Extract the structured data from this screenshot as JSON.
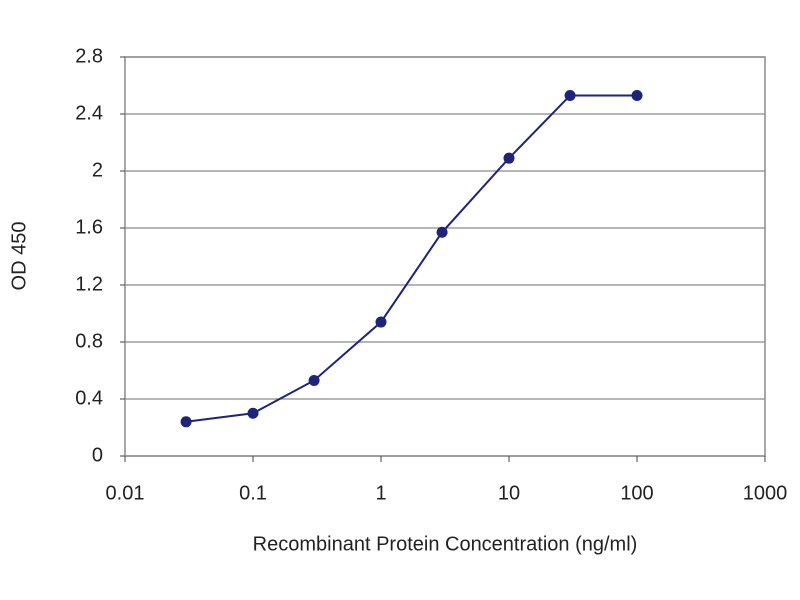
{
  "chart_data": {
    "type": "line",
    "x_label": "Recombinant Protein Concentration (ng/ml)",
    "y_label": "OD 450",
    "xscale": "log",
    "x": [
      0.03,
      0.1,
      0.3,
      1,
      3,
      10,
      30,
      100
    ],
    "series": [
      {
        "color": "#1f237a",
        "values": [
          0.24,
          0.3,
          0.53,
          0.94,
          1.57,
          2.09,
          2.53,
          2.53
        ]
      }
    ],
    "xlim": [
      0.01,
      1000
    ],
    "xticks": [
      0.01,
      0.1,
      1,
      10,
      100,
      1000
    ],
    "ylim": [
      0,
      2.8
    ],
    "yticks": [
      0,
      0.4,
      0.8,
      1.2,
      1.6,
      2,
      2.4,
      2.8
    ],
    "grid": true
  }
}
